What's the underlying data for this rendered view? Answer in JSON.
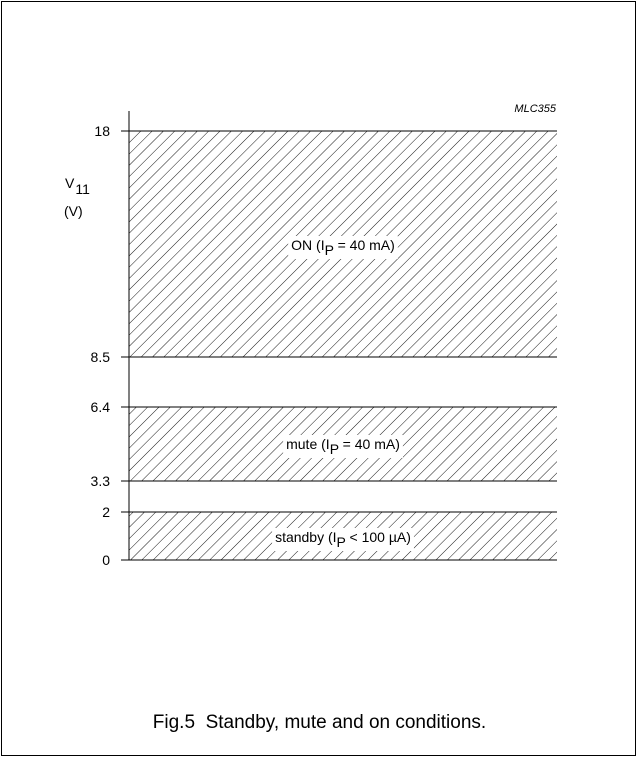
{
  "chart_data": {
    "type": "area",
    "figure_code": "MLC355",
    "ylabel_symbol": "V",
    "ylabel_subscript": "11",
    "ylabel_unit": "(V)",
    "y_ticks": [
      18,
      8.5,
      6.4,
      3.3,
      2,
      0
    ],
    "ylim": [
      0,
      18
    ],
    "regions": [
      {
        "from": 8.5,
        "to": 18,
        "pattern": "hatched",
        "label_pre": "ON (I",
        "label_sub": "P",
        "label_post": " = 40 mA)"
      },
      {
        "from": 3.3,
        "to": 6.4,
        "pattern": "hatched",
        "label_pre": "mute (I",
        "label_sub": "P",
        "label_post": " = 40 mA)"
      },
      {
        "from": 0,
        "to": 2,
        "pattern": "hatched",
        "label_pre": "standby (I",
        "label_sub": "P",
        "label_post": " < 100 µA)"
      }
    ],
    "caption": "Fig.5  Standby, mute and on conditions."
  }
}
